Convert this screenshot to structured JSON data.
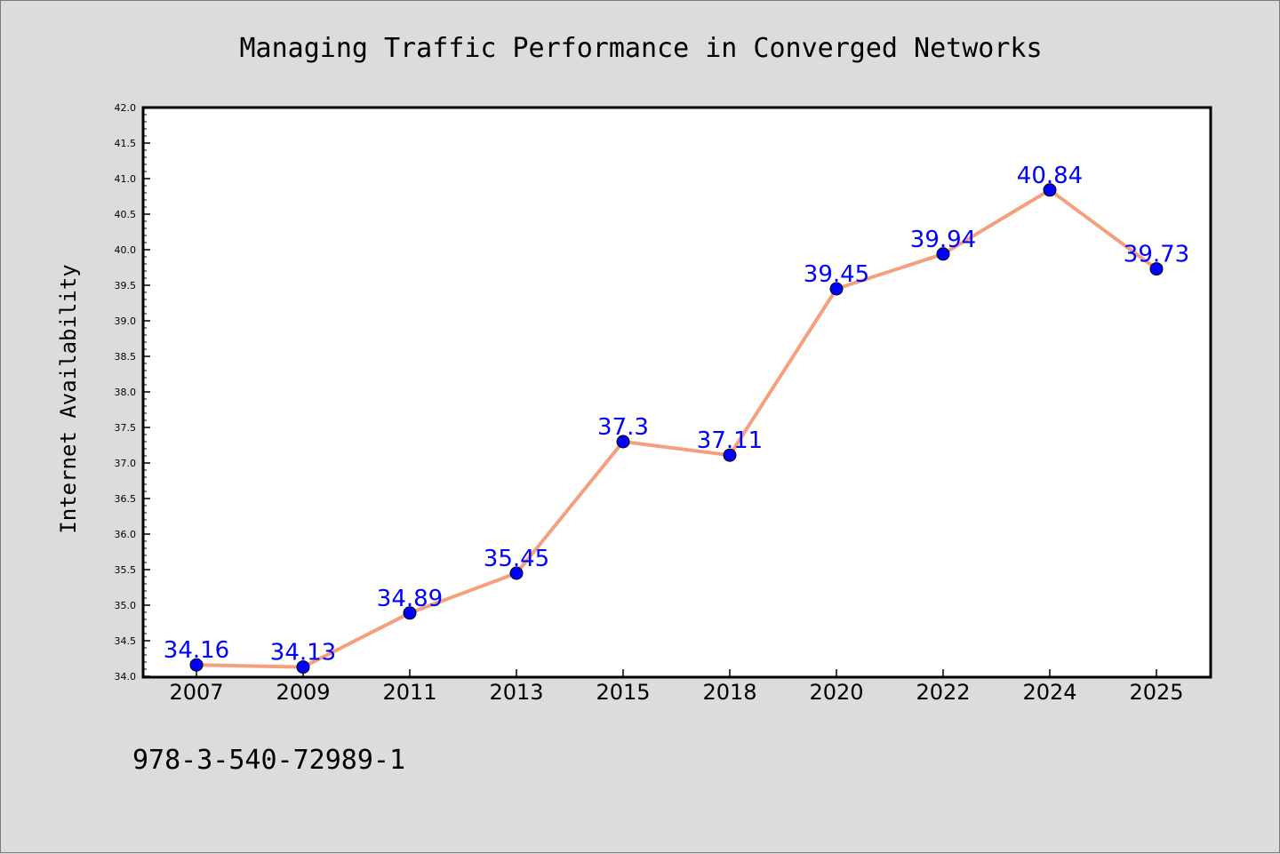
{
  "footer_text": "978-3-540-72989-1",
  "colors": {
    "background": "#dcdcdc",
    "plot_background": "#ffffff",
    "line": "#f4a07c",
    "marker": "#0000ff",
    "data_label": "#0000ff",
    "axis": "#000000"
  },
  "chart_data": {
    "type": "line",
    "title": "Managing Traffic Performance in Converged Networks",
    "xlabel": "",
    "ylabel": "Internet Availability",
    "ylim": [
      34.0,
      42.0
    ],
    "y_ticks": [
      "34.0",
      "34.5",
      "35.0",
      "35.5",
      "36.0",
      "36.5",
      "37.0",
      "37.5",
      "38.0",
      "38.5",
      "39.0",
      "39.5",
      "40.0",
      "40.5",
      "41.0",
      "41.5",
      "42.0"
    ],
    "categories": [
      "2007",
      "2009",
      "2011",
      "2013",
      "2015",
      "2018",
      "2020",
      "2022",
      "2024",
      "2025"
    ],
    "series": [
      {
        "values": [
          34.16,
          34.13,
          34.89,
          35.45,
          37.3,
          37.11,
          39.45,
          39.94,
          40.84,
          39.73
        ],
        "labels": [
          "34.16",
          "34.13",
          "34.89",
          "35.45",
          "37.3",
          "37.11",
          "39.45",
          "39.94",
          "40.84",
          "39.73"
        ]
      }
    ],
    "grid": false,
    "legend": "none",
    "data_labels": true
  }
}
